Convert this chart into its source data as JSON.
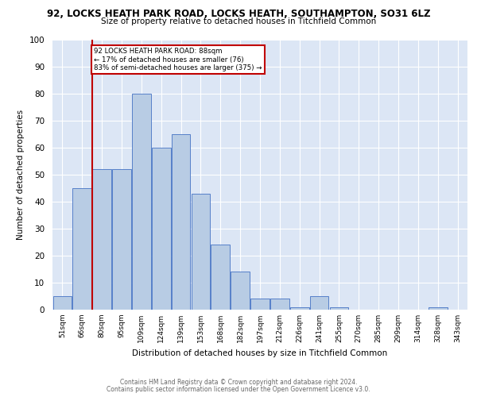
{
  "title1": "92, LOCKS HEATH PARK ROAD, LOCKS HEATH, SOUTHAMPTON, SO31 6LZ",
  "title2": "Size of property relative to detached houses in Titchfield Common",
  "xlabel": "Distribution of detached houses by size in Titchfield Common",
  "ylabel": "Number of detached properties",
  "bin_labels": [
    "51sqm",
    "66sqm",
    "80sqm",
    "95sqm",
    "109sqm",
    "124sqm",
    "139sqm",
    "153sqm",
    "168sqm",
    "182sqm",
    "197sqm",
    "212sqm",
    "226sqm",
    "241sqm",
    "255sqm",
    "270sqm",
    "285sqm",
    "299sqm",
    "314sqm",
    "328sqm",
    "343sqm"
  ],
  "bar_values": [
    5,
    45,
    52,
    52,
    80,
    60,
    65,
    43,
    24,
    14,
    4,
    4,
    1,
    5,
    1,
    0,
    0,
    0,
    0,
    1,
    0
  ],
  "bar_color": "#b8cce4",
  "bar_edge_color": "#4472c4",
  "vline_color": "#c00000",
  "annotation_text": "92 LOCKS HEATH PARK ROAD: 88sqm\n← 17% of detached houses are smaller (76)\n83% of semi-detached houses are larger (375) →",
  "annotation_box_color": "#c00000",
  "ylim": [
    0,
    100
  ],
  "yticks": [
    0,
    10,
    20,
    30,
    40,
    50,
    60,
    70,
    80,
    90,
    100
  ],
  "footer1": "Contains HM Land Registry data © Crown copyright and database right 2024.",
  "footer2": "Contains public sector information licensed under the Open Government Licence v3.0.",
  "plot_bg": "#dce6f5"
}
